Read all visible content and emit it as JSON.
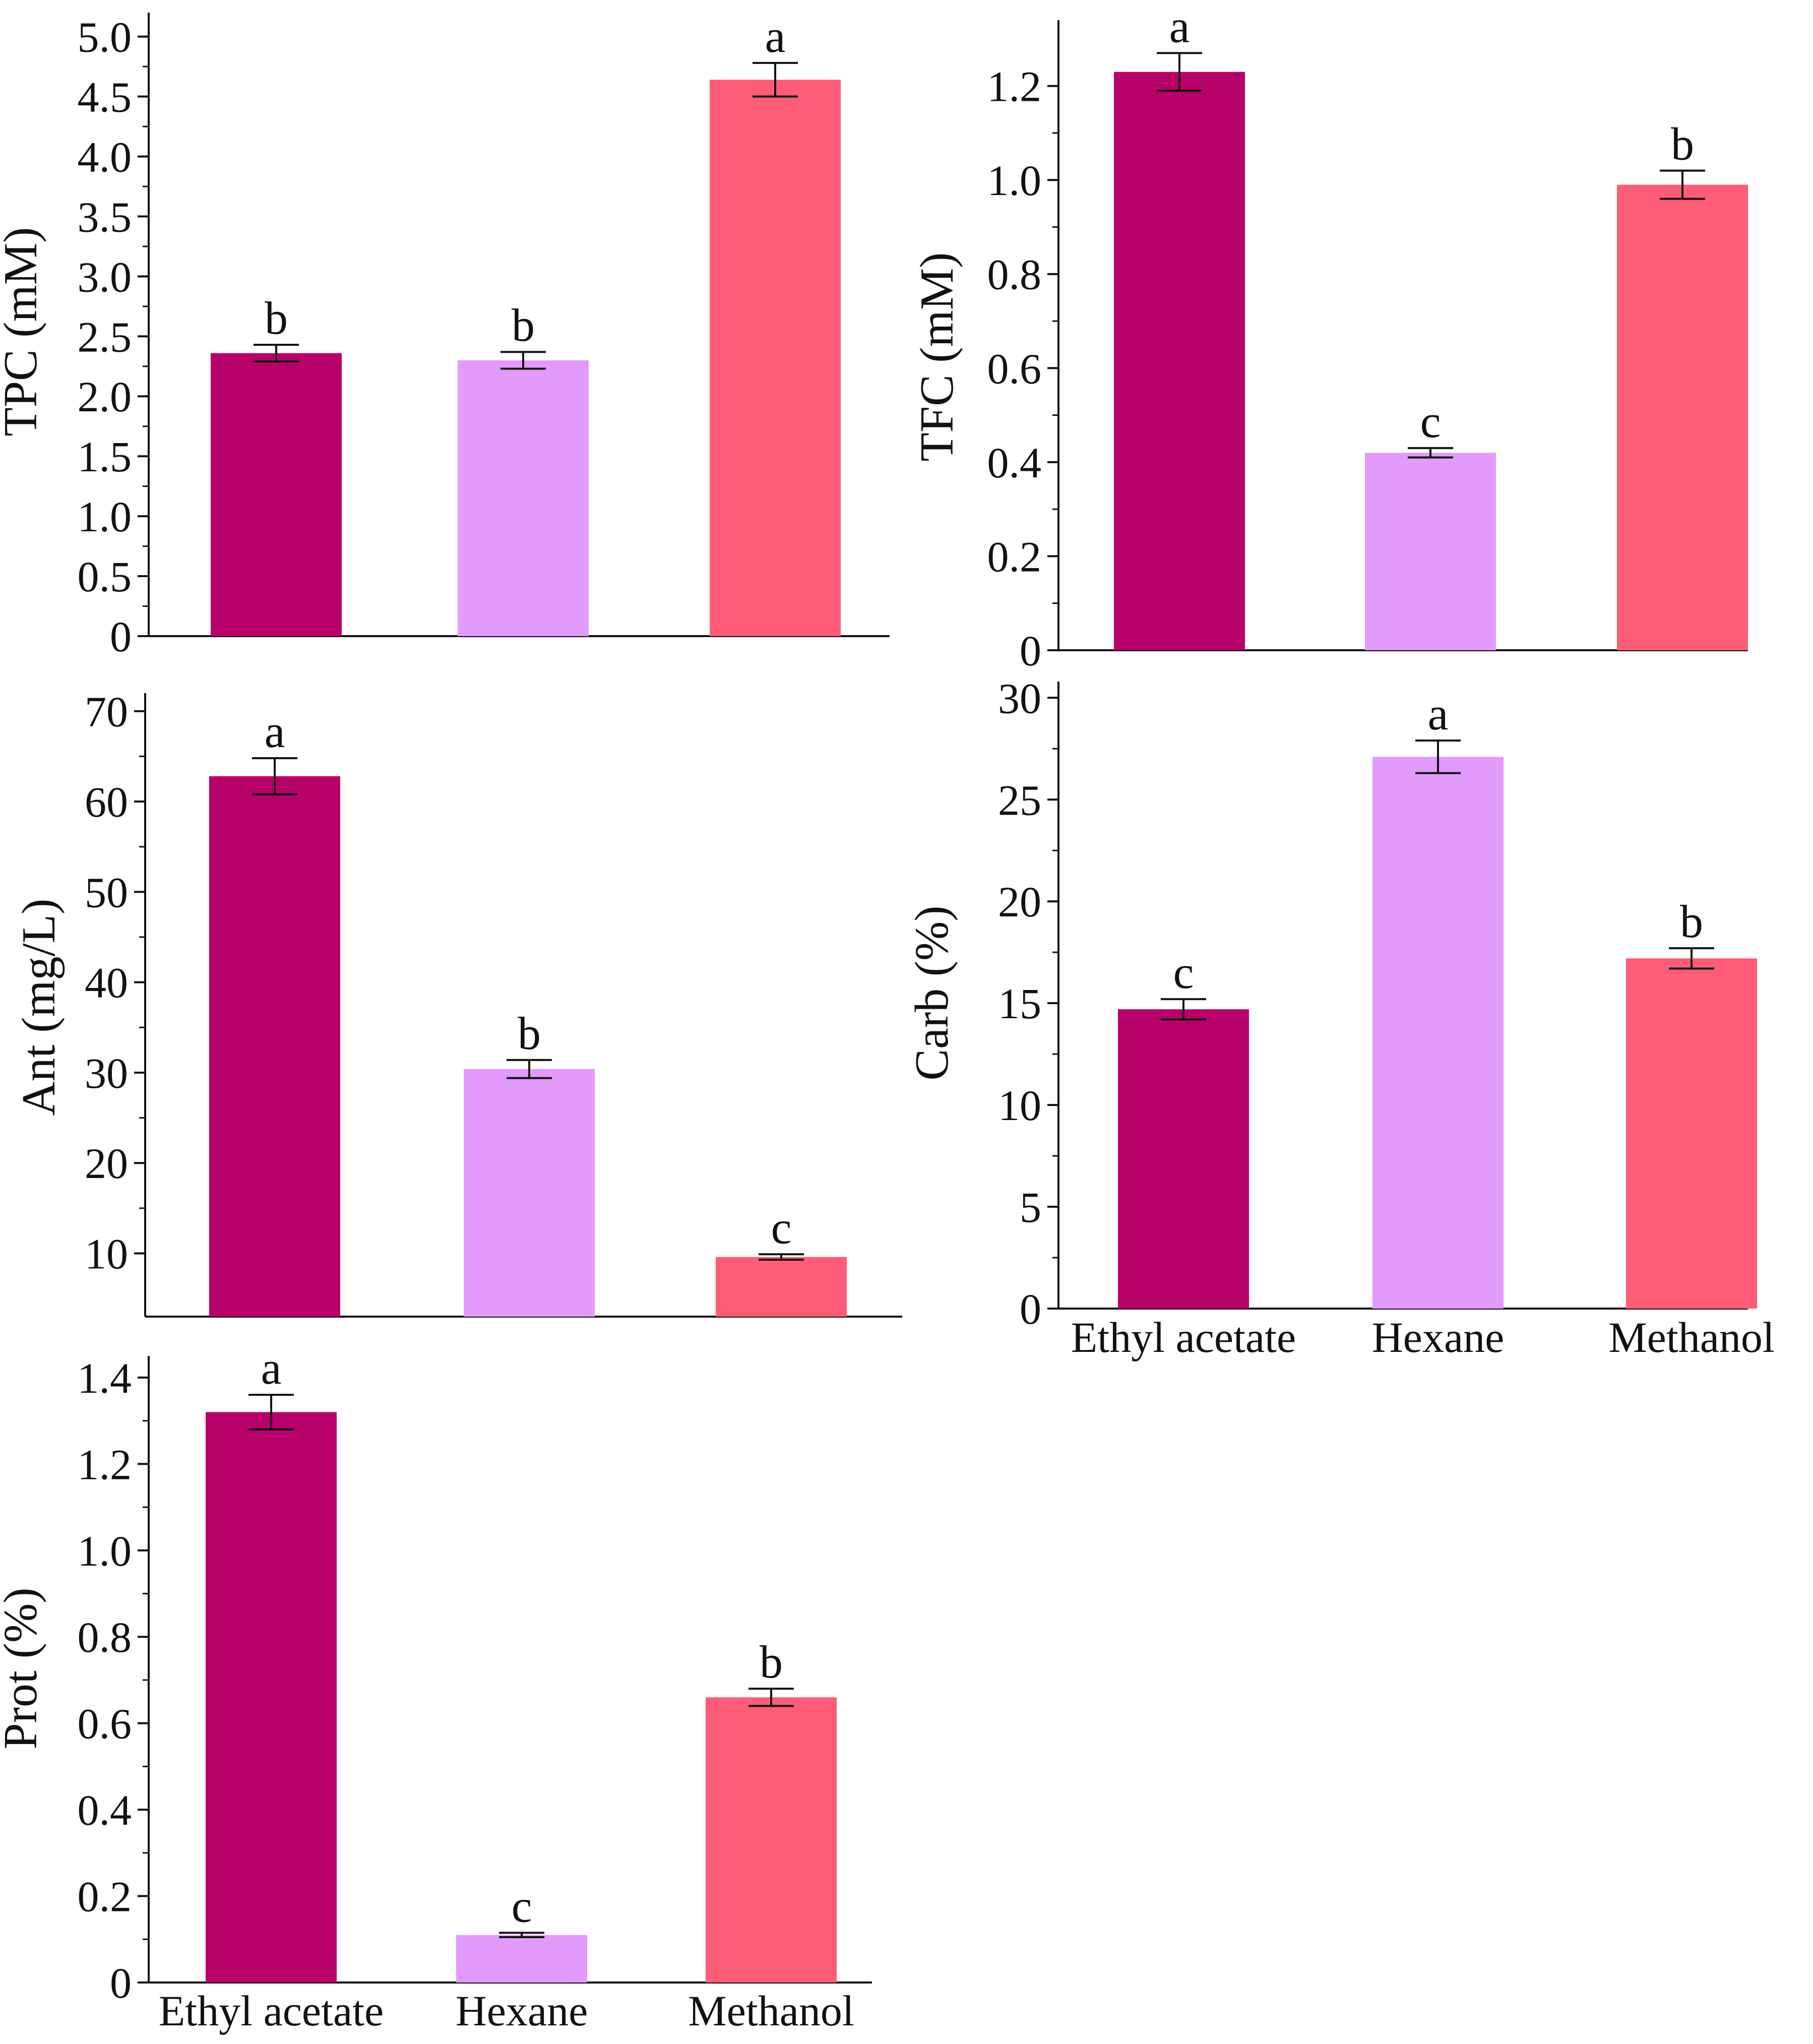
{
  "colors": {
    "ethyl_acetate": "#B8006B",
    "hexane": "#E29BFB",
    "methanol": "#FF5C77",
    "axis": "#111111"
  },
  "chart_data": [
    {
      "id": "tpc",
      "type": "bar",
      "ylabel": "TPC (mM)",
      "categories": [
        "Ethyl acetate",
        "Hexane",
        "Methanol"
      ],
      "show_category_labels": false,
      "values": [
        2.36,
        2.3,
        4.64
      ],
      "errors": [
        0.07,
        0.07,
        0.14
      ],
      "letters": [
        "b",
        "b",
        "a"
      ],
      "ylim": [
        0,
        5.2
      ],
      "yticks": [
        0,
        0.5,
        1.0,
        1.5,
        2.0,
        2.5,
        3.0,
        3.5,
        4.0,
        4.5,
        5.0
      ],
      "ytick_labels": [
        "0",
        "0.5",
        "1.0",
        "1.5",
        "2.0",
        "2.5",
        "3.0",
        "3.5",
        "4.0",
        "4.5",
        "5.0"
      ],
      "grid": false
    },
    {
      "id": "tfc",
      "type": "bar",
      "ylabel": "TFC (mM)",
      "categories": [
        "Ethyl acetate",
        "Hexane",
        "Methanol"
      ],
      "show_category_labels": false,
      "values": [
        1.23,
        0.42,
        0.99
      ],
      "errors": [
        0.04,
        0.01,
        0.03
      ],
      "letters": [
        "a",
        "c",
        "b"
      ],
      "ylim": [
        0,
        1.34
      ],
      "yticks": [
        0,
        0.2,
        0.4,
        0.6,
        0.8,
        1.0,
        1.2
      ],
      "ytick_labels": [
        "0",
        "0.2",
        "0.4",
        "0.6",
        "0.8",
        "1.0",
        "1.2"
      ],
      "grid": false
    },
    {
      "id": "ant",
      "type": "bar",
      "ylabel": "Ant (mg/L)",
      "categories": [
        "Ethyl acetate",
        "Hexane",
        "Methanol"
      ],
      "show_category_labels": false,
      "values": [
        62.8,
        30.4,
        9.6
      ],
      "errors": [
        2.0,
        1.0,
        0.3
      ],
      "letters": [
        "a",
        "b",
        "c"
      ],
      "ylim": [
        3,
        72
      ],
      "yticks": [
        10,
        20,
        30,
        40,
        50,
        60,
        70
      ],
      "ytick_labels": [
        "10",
        "20",
        "30",
        "40",
        "50",
        "60",
        "70"
      ],
      "grid": false
    },
    {
      "id": "carb",
      "type": "bar",
      "ylabel": "Carb (%)",
      "categories": [
        "Ethyl acetate",
        "Hexane",
        "Methanol"
      ],
      "show_category_labels": true,
      "values": [
        14.7,
        27.1,
        17.2
      ],
      "errors": [
        0.5,
        0.8,
        0.5
      ],
      "letters": [
        "c",
        "a",
        "b"
      ],
      "ylim": [
        0,
        30.8
      ],
      "yticks": [
        0,
        5,
        10,
        15,
        20,
        25,
        30
      ],
      "ytick_labels": [
        "0",
        "5",
        "10",
        "15",
        "20",
        "25",
        "30"
      ],
      "grid": false
    },
    {
      "id": "prot",
      "type": "bar",
      "ylabel": "Prot (%)",
      "categories": [
        "Ethyl acetate",
        "Hexane",
        "Methanol"
      ],
      "show_category_labels": true,
      "values": [
        1.32,
        0.11,
        0.66
      ],
      "errors": [
        0.04,
        0.005,
        0.02
      ],
      "letters": [
        "a",
        "c",
        "b"
      ],
      "ylim": [
        0,
        1.45
      ],
      "yticks": [
        0,
        0.2,
        0.4,
        0.6,
        0.8,
        1.0,
        1.2,
        1.4
      ],
      "ytick_labels": [
        "0",
        "0.2",
        "0.4",
        "0.6",
        "0.8",
        "1.0",
        "1.2",
        "1.4"
      ],
      "grid": false
    }
  ]
}
